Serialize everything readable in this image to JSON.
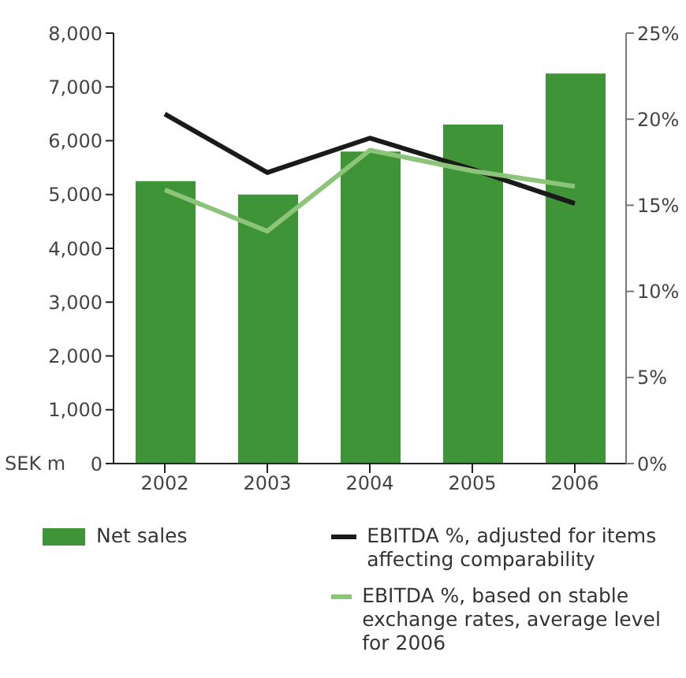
{
  "chart_data": {
    "type": "bar",
    "ylabel": "SEK m",
    "categories": [
      "2002",
      "2003",
      "2004",
      "2005",
      "2006"
    ],
    "series": [
      {
        "name": "Net sales",
        "color": "#3f9438",
        "values": [
          5250,
          5000,
          5800,
          6300,
          7250
        ]
      },
      {
        "name": "EBITDA %, adjusted for items affecting comparability",
        "type": "line",
        "axis": "y2",
        "color": "#1a1a1a",
        "values": [
          20.3,
          16.9,
          18.9,
          17.1,
          15.1
        ]
      },
      {
        "name": "EBITDA %, based on stable exchange rates, average level for 2006",
        "type": "line",
        "axis": "y2",
        "color": "#8cc47a",
        "values": [
          15.9,
          13.5,
          18.2,
          17.0,
          16.1
        ]
      }
    ],
    "ylim": [
      0,
      8000
    ],
    "yticks": [
      {
        "value": 0,
        "label": "0"
      },
      {
        "value": 1000,
        "label": "1,000"
      },
      {
        "value": 2000,
        "label": "2,000"
      },
      {
        "value": 3000,
        "label": "3,000"
      },
      {
        "value": 4000,
        "label": "4,000"
      },
      {
        "value": 5000,
        "label": "5,000"
      },
      {
        "value": 6000,
        "label": "6,000"
      },
      {
        "value": 7000,
        "label": "7,000"
      },
      {
        "value": 8000,
        "label": "8,000"
      }
    ],
    "y2lim": [
      0,
      25
    ],
    "y2ticks": [
      {
        "value": 0,
        "label": "0%"
      },
      {
        "value": 5,
        "label": "5%"
      },
      {
        "value": 10,
        "label": "10%"
      },
      {
        "value": 15,
        "label": "15%"
      },
      {
        "value": 20,
        "label": "20%"
      },
      {
        "value": 25,
        "label": "25%"
      }
    ],
    "grid": false,
    "legend": "bottom",
    "marker": "none",
    "line_style": "solid"
  }
}
